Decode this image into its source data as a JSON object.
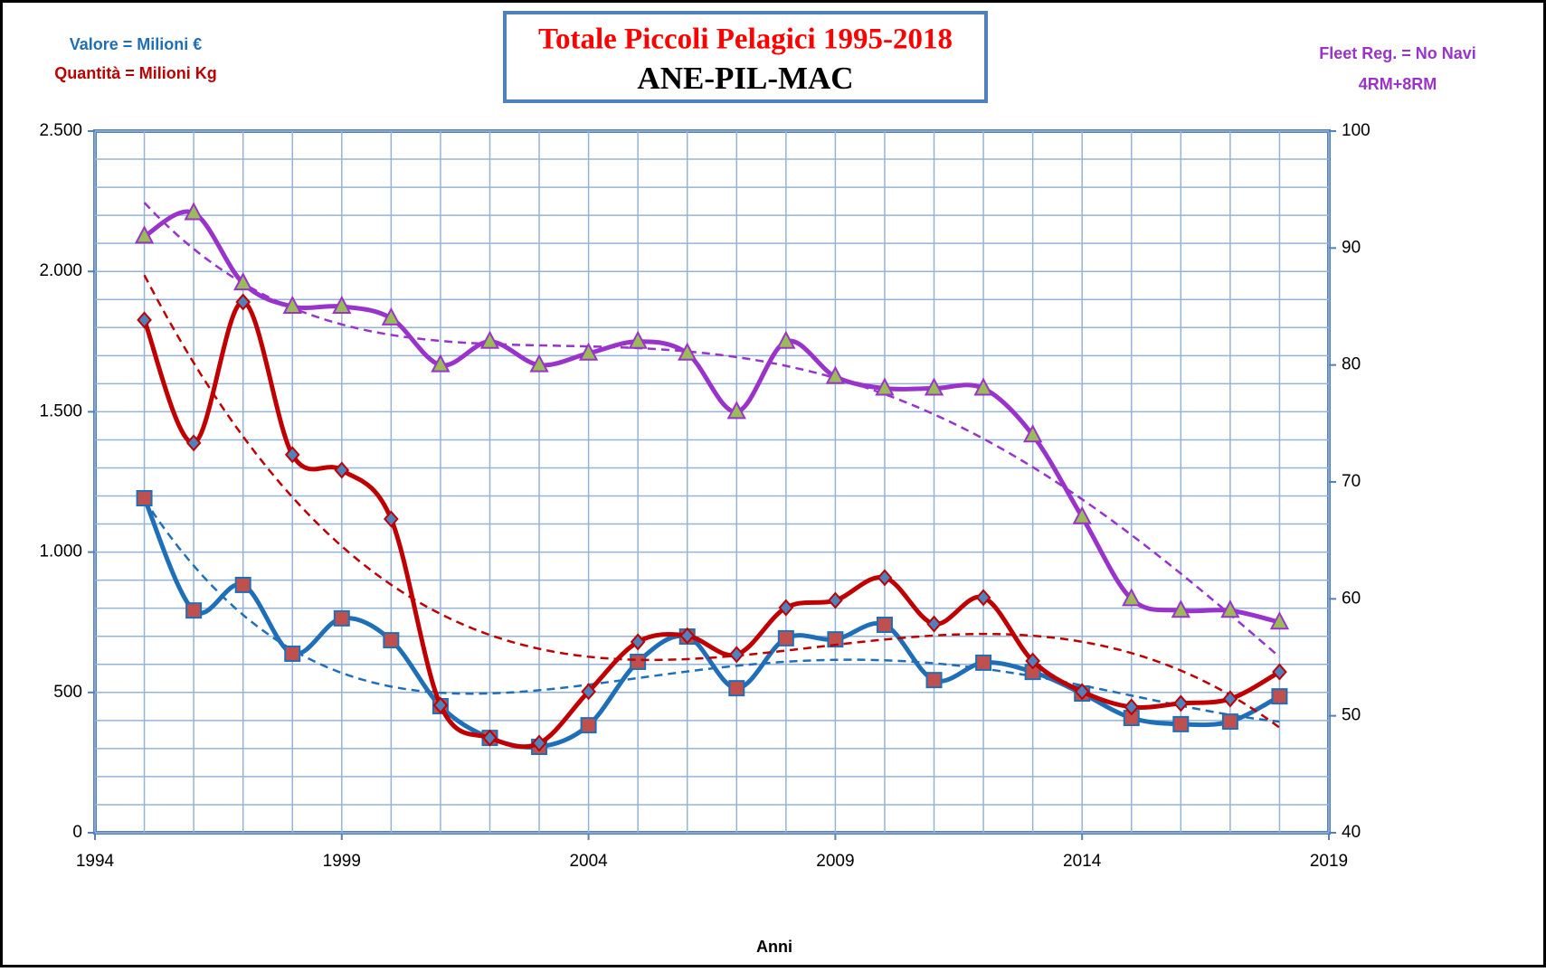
{
  "chart_data": {
    "type": "line",
    "title": "Totale Piccoli Pelagici 1995-2018",
    "subtitle": "ANE-PIL-MAC",
    "xlabel": "Anni",
    "x": [
      1995,
      1996,
      1997,
      1998,
      1999,
      2000,
      2001,
      2002,
      2003,
      2004,
      2005,
      2006,
      2007,
      2008,
      2009,
      2010,
      2011,
      2012,
      2013,
      2014,
      2015,
      2016,
      2017,
      2018
    ],
    "series": [
      {
        "name": "Valore = Milioni €",
        "color": "#1f6fb8",
        "marker": "square",
        "marker_color": "#c0504d",
        "axis": "y",
        "values": [
          1192,
          792,
          883,
          638,
          764,
          686,
          451,
          338,
          306,
          383,
          609,
          699,
          515,
          693,
          689,
          741,
          544,
          606,
          573,
          496,
          409,
          387,
          396,
          486
        ]
      },
      {
        "name": "Quantità = Milioni Kg",
        "color": "#c00000",
        "marker": "diamond",
        "marker_color": "#4f81bd",
        "axis": "y",
        "values": [
          1827,
          1389,
          1891,
          1347,
          1292,
          1118,
          454,
          338,
          319,
          503,
          680,
          702,
          635,
          802,
          828,
          909,
          744,
          838,
          612,
          503,
          448,
          461,
          477,
          573
        ]
      },
      {
        "name": "Fleet Reg. = No Navi",
        "subname": "4RM+8RM",
        "color": "#9933cc",
        "marker": "triangle",
        "marker_color": "#9bbb59",
        "axis": "y2",
        "values": [
          91,
          93,
          87,
          85,
          85,
          84,
          80,
          82,
          80,
          81,
          82,
          81,
          76,
          82,
          79,
          78,
          78,
          78,
          74,
          67,
          60,
          59,
          59,
          58
        ]
      }
    ],
    "xlim": [
      1994,
      2019
    ],
    "xticks": [
      1994,
      1999,
      2004,
      2009,
      2014,
      2019
    ],
    "ylim": [
      0,
      2500
    ],
    "yticks": [
      0,
      500,
      {
        "value": 1000,
        "label": "1.000"
      },
      {
        "value": 1500,
        "label": "1.500"
      },
      {
        "value": 2000,
        "label": "2.000"
      },
      {
        "value": 2500,
        "label": "2.500"
      }
    ],
    "y2lim": [
      40,
      100
    ],
    "y2ticks": [
      40,
      50,
      60,
      70,
      80,
      90,
      100
    ],
    "grid": true,
    "x_minor_ticks": [
      1995,
      1996,
      1997,
      1998,
      2000,
      2001,
      2002,
      2003,
      2005,
      2006,
      2007,
      2008,
      2010,
      2011,
      2012,
      2013,
      2015,
      2016,
      2017,
      2018
    ],
    "y_minor_ticks": [
      100,
      200,
      300,
      400,
      600,
      700,
      800,
      900,
      1100,
      1200,
      1300,
      1400,
      1600,
      1700,
      1800,
      1900,
      2100,
      2200,
      2300,
      2400
    ],
    "smooth": true,
    "trendline": "polynomial"
  }
}
